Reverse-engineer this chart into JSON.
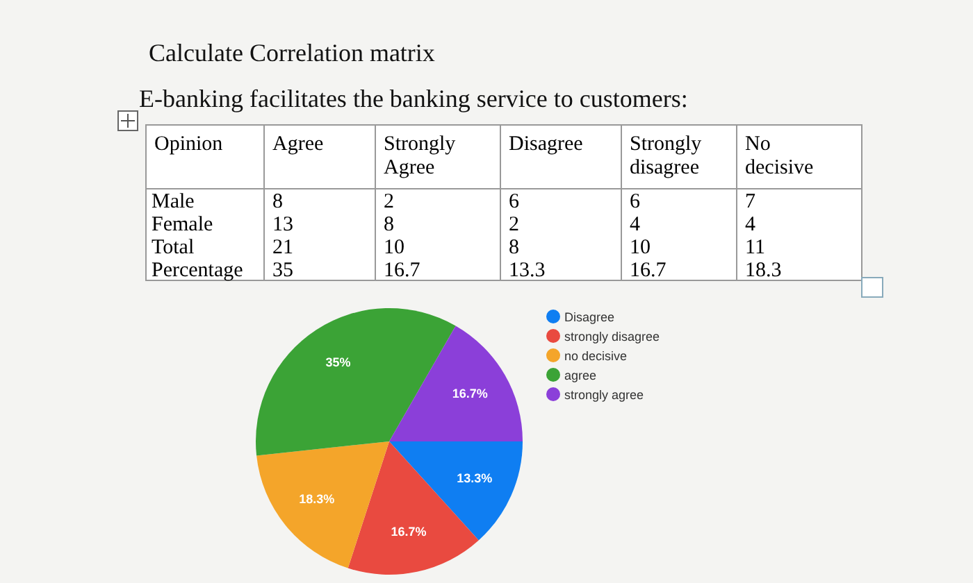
{
  "chart_data": [
    {
      "type": "other",
      "title": "Calculate Correlation matrix",
      "subtitle": "E-banking facilitates the banking service to customers:",
      "ylabel": "Opinion",
      "categories": [
        "Agree",
        "Strongly Agree",
        "Disagree",
        "Strongly disagree",
        "No decisive"
      ],
      "y_categories": [
        "Male",
        "Female",
        "Total",
        "Percentage"
      ],
      "cell_labels": [
        [
          "8",
          "2",
          "6",
          "6",
          "7"
        ],
        [
          "13",
          "8",
          "2",
          "4",
          "4"
        ],
        [
          "21",
          "10",
          "8",
          "10",
          "11"
        ],
        [
          "35",
          "16.7",
          "13.3",
          "16.7",
          "18.3"
        ]
      ]
    },
    {
      "type": "pie",
      "categories": [
        "Disagree",
        "strongly disagree",
        "no decisive",
        "agree",
        "strongly agree"
      ],
      "values": [
        13.3,
        16.7,
        18.3,
        35,
        16.7
      ],
      "colors": [
        "#0f7ef2",
        "#e94a40",
        "#f4a52a",
        "#3ba336",
        "#8b3fd9"
      ],
      "value_labels": [
        "13.3%",
        "16.7%",
        "18.3%",
        "35%",
        "16.7%"
      ],
      "legend": "right"
    }
  ]
}
